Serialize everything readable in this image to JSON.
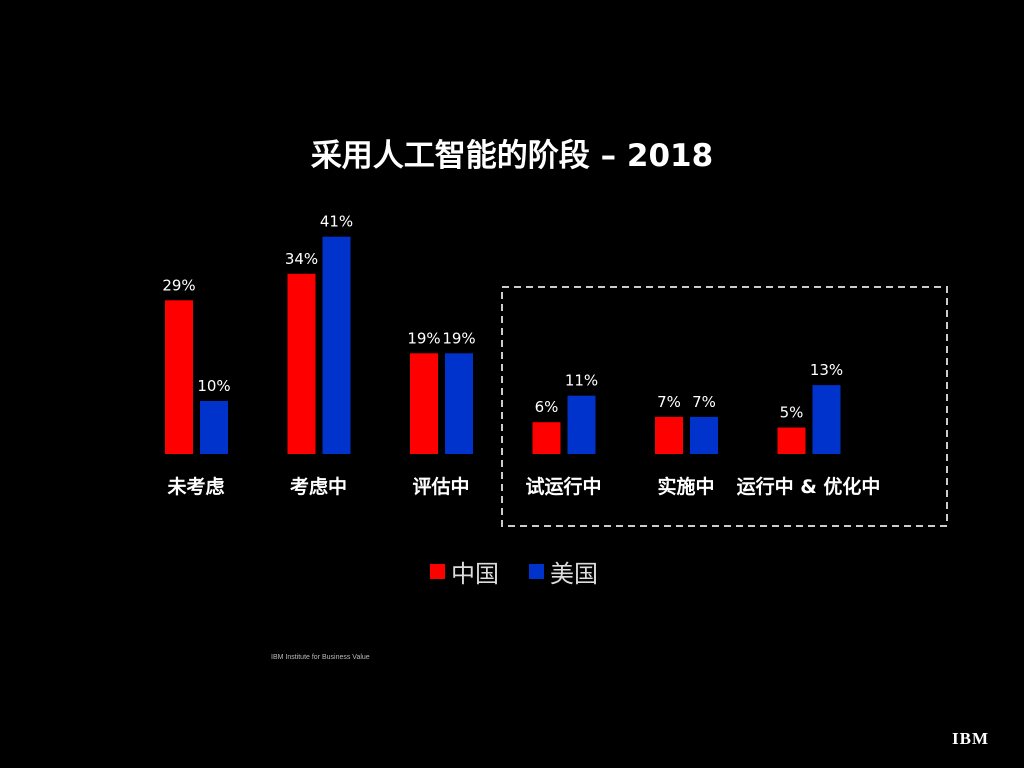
{
  "chart_data": {
    "type": "bar",
    "title": "采用人工智能的阶段 – 2018",
    "categories": [
      "未考虑",
      "考虑中",
      "评估中",
      "试运行中",
      "实施中",
      "运行中 & 优化中"
    ],
    "series": [
      {
        "name": "中国",
        "color": "#ff0000",
        "values": [
          29,
          34,
          19,
          6,
          7,
          5
        ]
      },
      {
        "name": "美国",
        "color": "#0033cc",
        "values": [
          10,
          41,
          19,
          11,
          7,
          13
        ]
      }
    ],
    "value_suffix": "%",
    "highlight_box_categories": [
      "试运行中",
      "实施中",
      "运行中 & 优化中"
    ],
    "legend_position": "bottom",
    "grid": false
  },
  "source": "IBM Institute for Business Value",
  "logo": "IBM"
}
